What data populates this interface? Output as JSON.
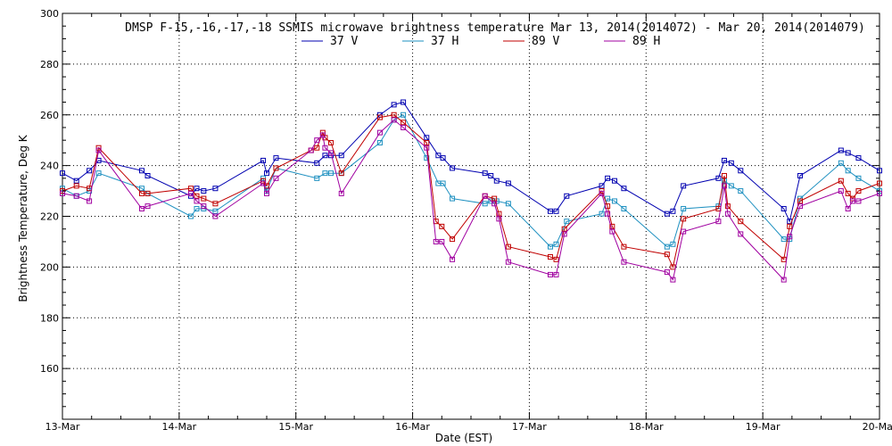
{
  "chart_data": {
    "type": "line",
    "title": "DMSP F-15,-16,-17,-18 SSMIS microwave brightness temperature Mar 13, 2014(2014072) - Mar 20, 2014(2014079)",
    "xlabel": "Date (EST)",
    "ylabel": "Brightness Temperature, Deg K",
    "xlim": [
      0,
      7
    ],
    "ylim": [
      140,
      300
    ],
    "x_ticks": [
      {
        "value": 0,
        "label": "13-Mar"
      },
      {
        "value": 1,
        "label": "14-Mar"
      },
      {
        "value": 2,
        "label": "15-Mar"
      },
      {
        "value": 3,
        "label": "16-Mar"
      },
      {
        "value": 4,
        "label": "17-Mar"
      },
      {
        "value": 5,
        "label": "18-Mar"
      },
      {
        "value": 6,
        "label": "19-Mar"
      },
      {
        "value": 7,
        "label": "20-Mar"
      }
    ],
    "y_ticks": [
      160,
      180,
      200,
      220,
      240,
      260,
      280,
      300
    ],
    "grid": true,
    "legend_position": "top-center",
    "series": [
      {
        "name": "37 V",
        "color": "#0000b0",
        "x": [
          0.0,
          0.12,
          0.23,
          0.31,
          0.68,
          0.73,
          1.1,
          1.15,
          1.21,
          1.31,
          1.72,
          1.75,
          1.83,
          2.18,
          2.25,
          2.3,
          2.39,
          2.72,
          2.84,
          2.92,
          3.12,
          3.22,
          3.26,
          3.34,
          3.62,
          3.67,
          3.72,
          3.82,
          4.18,
          4.23,
          4.32,
          4.62,
          4.67,
          4.73,
          4.81,
          5.18,
          5.23,
          5.32,
          5.62,
          5.67,
          5.73,
          5.81,
          6.18,
          6.23,
          6.32,
          6.67,
          6.73,
          6.82,
          7.0
        ],
        "values": [
          237,
          234,
          238,
          242,
          238,
          236,
          228,
          231,
          230,
          231,
          242,
          237,
          243,
          241,
          244,
          244,
          244,
          260,
          264,
          265,
          251,
          244,
          243,
          239,
          237,
          236,
          234,
          233,
          222,
          222,
          228,
          232,
          235,
          234,
          231,
          221,
          222,
          232,
          235,
          242,
          241,
          238,
          223,
          218,
          236,
          246,
          245,
          243,
          238
        ]
      },
      {
        "name": "37 H",
        "color": "#1e90c0",
        "x": [
          0.0,
          0.12,
          0.23,
          0.31,
          0.68,
          0.73,
          1.1,
          1.15,
          1.21,
          1.31,
          1.72,
          1.75,
          1.83,
          2.18,
          2.25,
          2.3,
          2.39,
          2.72,
          2.84,
          2.92,
          3.12,
          3.22,
          3.26,
          3.34,
          3.62,
          3.67,
          3.72,
          3.82,
          4.18,
          4.23,
          4.32,
          4.62,
          4.67,
          4.73,
          4.81,
          5.18,
          5.23,
          5.32,
          5.62,
          5.67,
          5.73,
          5.81,
          6.18,
          6.23,
          6.32,
          6.67,
          6.73,
          6.82,
          7.0
        ],
        "values": [
          231,
          228,
          230,
          237,
          231,
          229,
          220,
          223,
          223,
          222,
          235,
          230,
          239,
          235,
          237,
          237,
          237,
          249,
          258,
          260,
          243,
          233,
          233,
          227,
          225,
          226,
          226,
          225,
          208,
          209,
          218,
          221,
          227,
          226,
          223,
          208,
          209,
          223,
          224,
          234,
          232,
          230,
          211,
          211,
          227,
          241,
          238,
          235,
          230
        ]
      },
      {
        "name": "89 V",
        "color": "#c00000",
        "x": [
          0.0,
          0.12,
          0.23,
          0.31,
          0.68,
          0.73,
          1.1,
          1.15,
          1.21,
          1.31,
          1.72,
          1.75,
          1.83,
          2.13,
          2.18,
          2.23,
          2.25,
          2.3,
          2.39,
          2.72,
          2.84,
          2.92,
          3.12,
          3.2,
          3.25,
          3.34,
          3.62,
          3.7,
          3.74,
          3.82,
          4.18,
          4.23,
          4.3,
          4.62,
          4.67,
          4.71,
          4.81,
          5.18,
          5.23,
          5.32,
          5.62,
          5.67,
          5.7,
          5.81,
          6.18,
          6.23,
          6.32,
          6.67,
          6.73,
          6.77,
          6.82,
          7.0
        ],
        "values": [
          230,
          232,
          231,
          247,
          229,
          229,
          231,
          228,
          227,
          225,
          234,
          232,
          239,
          246,
          247,
          253,
          251,
          249,
          237,
          259,
          260,
          257,
          249,
          218,
          216,
          211,
          228,
          227,
          221,
          208,
          204,
          203,
          215,
          230,
          224,
          216,
          208,
          205,
          200,
          219,
          223,
          236,
          224,
          218,
          203,
          216,
          226,
          234,
          229,
          227,
          230,
          233
        ]
      },
      {
        "name": "89 H",
        "color": "#a000a0",
        "x": [
          0.0,
          0.12,
          0.23,
          0.31,
          0.68,
          0.73,
          1.1,
          1.15,
          1.21,
          1.31,
          1.72,
          1.75,
          1.83,
          2.13,
          2.18,
          2.23,
          2.25,
          2.3,
          2.39,
          2.72,
          2.84,
          2.92,
          3.12,
          3.2,
          3.25,
          3.34,
          3.62,
          3.7,
          3.74,
          3.82,
          4.18,
          4.23,
          4.3,
          4.62,
          4.67,
          4.71,
          4.81,
          5.18,
          5.23,
          5.32,
          5.62,
          5.67,
          5.7,
          5.81,
          6.18,
          6.23,
          6.32,
          6.67,
          6.73,
          6.77,
          6.82,
          7.0
        ],
        "values": [
          229,
          228,
          226,
          246,
          223,
          224,
          229,
          226,
          224,
          220,
          233,
          229,
          235,
          246,
          250,
          252,
          247,
          245,
          229,
          253,
          258,
          255,
          247,
          210,
          210,
          203,
          228,
          225,
          219,
          202,
          197,
          197,
          213,
          229,
          221,
          214,
          202,
          198,
          195,
          214,
          218,
          232,
          221,
          213,
          195,
          212,
          224,
          230,
          223,
          226,
          226,
          229
        ]
      }
    ]
  }
}
